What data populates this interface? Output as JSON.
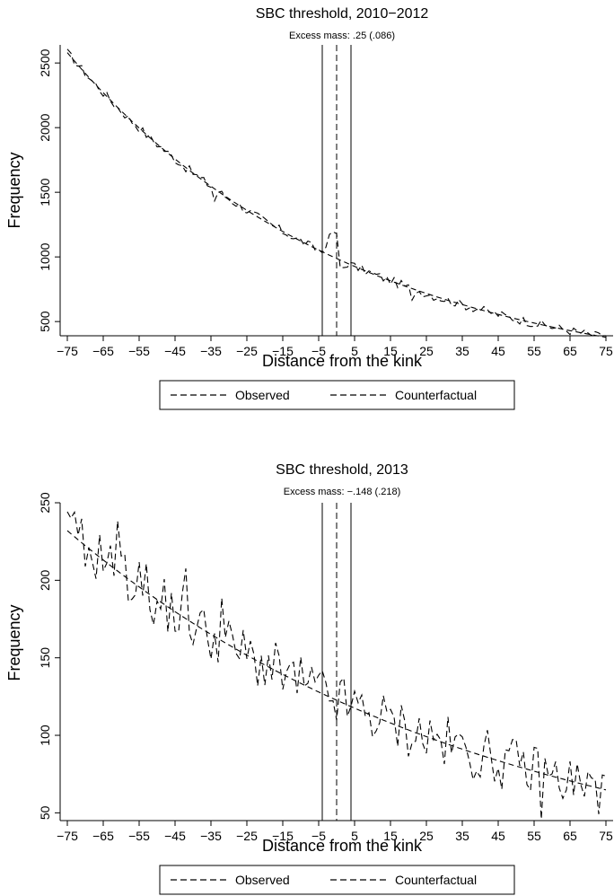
{
  "legend": {
    "observed": "Observed",
    "counterfactual": "Counterfactual"
  },
  "chart_data": [
    {
      "type": "line",
      "title": "SBC threshold, 2010−2012",
      "subtitle": "Excess mass: .25 (.086)",
      "xlabel": "Distance from the kink",
      "ylabel": "Frequency",
      "xlim": [
        -77,
        77
      ],
      "ylim": [
        390,
        2640
      ],
      "xticks": [
        -75,
        -65,
        -55,
        -45,
        -35,
        -25,
        -15,
        -5,
        5,
        15,
        25,
        35,
        45,
        55,
        65,
        75
      ],
      "xtick_labels": [
        "−75",
        "−65",
        "−55",
        "−45",
        "−35",
        "−25",
        "−15",
        "−5",
        "5",
        "15",
        "25",
        "35",
        "45",
        "55",
        "65",
        "75"
      ],
      "yticks": [
        500,
        1000,
        1500,
        2000,
        2500
      ],
      "ytick_labels": [
        "500",
        "1000",
        "1500",
        "2000",
        "2500"
      ],
      "grid": false,
      "legend": "bottom",
      "vlines": [
        {
          "x": -4,
          "style": "solid"
        },
        {
          "x": 0,
          "style": "dashed"
        },
        {
          "x": 4,
          "style": "solid"
        }
      ],
      "counterfactual": {
        "x": [
          -75,
          75
        ],
        "a": 2580,
        "b": 0.0128
      },
      "observed": {
        "x_start": -75,
        "x_end": 75,
        "step": 1,
        "noise": 35,
        "bunching": [
          {
            "x": -3,
            "dy": 80
          },
          {
            "x": -2,
            "dy": 130
          },
          {
            "x": -1,
            "dy": 200
          },
          {
            "x": 0,
            "dy": 170
          },
          {
            "x": 1,
            "dy": -60
          },
          {
            "x": 2,
            "dy": -40
          }
        ],
        "extra_dips": [
          {
            "x": -34,
            "dy": -90
          },
          {
            "x": 21,
            "dy": -110
          }
        ]
      }
    },
    {
      "type": "line",
      "title": "SBC threshold, 2013",
      "subtitle": "Excess mass: −.148 (.218)",
      "xlabel": "Distance from the kink",
      "ylabel": "Frequency",
      "xlim": [
        -77,
        77
      ],
      "ylim": [
        45,
        250
      ],
      "xticks": [
        -75,
        -65,
        -55,
        -45,
        -35,
        -25,
        -15,
        -5,
        5,
        15,
        25,
        35,
        45,
        55,
        65,
        75
      ],
      "xtick_labels": [
        "−75",
        "−65",
        "−55",
        "−45",
        "−35",
        "−25",
        "−15",
        "−5",
        "5",
        "15",
        "25",
        "35",
        "45",
        "55",
        "65",
        "75"
      ],
      "yticks": [
        50,
        100,
        150,
        200,
        250
      ],
      "ytick_labels": [
        "50",
        "100",
        "150",
        "200",
        "250"
      ],
      "grid": false,
      "legend": "bottom",
      "vlines": [
        {
          "x": -4,
          "style": "solid"
        },
        {
          "x": 0,
          "style": "dashed"
        },
        {
          "x": 4,
          "style": "solid"
        }
      ],
      "counterfactual": {
        "x": [
          -75,
          75
        ],
        "a": 232,
        "b": 0.0085
      },
      "observed": {
        "x_start": -75,
        "x_end": 75,
        "step": 1,
        "noise": 18,
        "bunching": [
          {
            "x": -72,
            "dy": 10
          },
          {
            "x": -64,
            "dy": 15
          },
          {
            "x": -61,
            "dy": 40
          },
          {
            "x": -53,
            "dy": 35
          },
          {
            "x": -42,
            "dy": 20
          },
          {
            "x": -32,
            "dy": 25
          },
          {
            "x": 73,
            "dy": -15
          }
        ],
        "extra_dips": [
          {
            "x": -70,
            "dy": -25
          },
          {
            "x": -51,
            "dy": -30
          },
          {
            "x": 57,
            "dy": -15
          }
        ]
      }
    }
  ]
}
